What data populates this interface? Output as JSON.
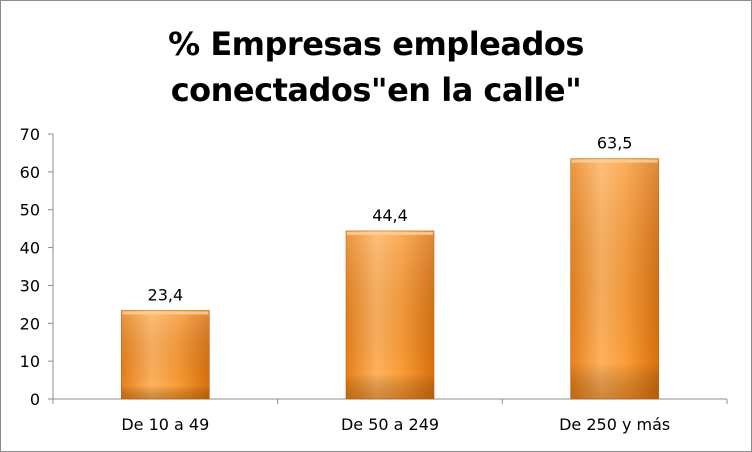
{
  "chart_data": {
    "type": "bar",
    "title_lines": [
      "% Empresas empleados",
      "conectados\"en la calle\""
    ],
    "xlabel": "",
    "ylabel": "",
    "categories": [
      "De 10 a 49",
      "De 50 a 249",
      "De 250 y más"
    ],
    "series": [
      {
        "values": [
          23.4,
          44.4,
          63.5
        ],
        "labels": [
          "23,4",
          "44,4",
          "63,5"
        ]
      }
    ],
    "ylim": [
      0,
      70
    ],
    "yticks": [
      0,
      10,
      20,
      30,
      40,
      50,
      60,
      70
    ],
    "grid": false,
    "legend": "none",
    "colors": {
      "bar_light": "#ffb35c",
      "bar_mid": "#f7931e",
      "bar_dark": "#c8620b",
      "axis": "#8c8c8c"
    }
  }
}
